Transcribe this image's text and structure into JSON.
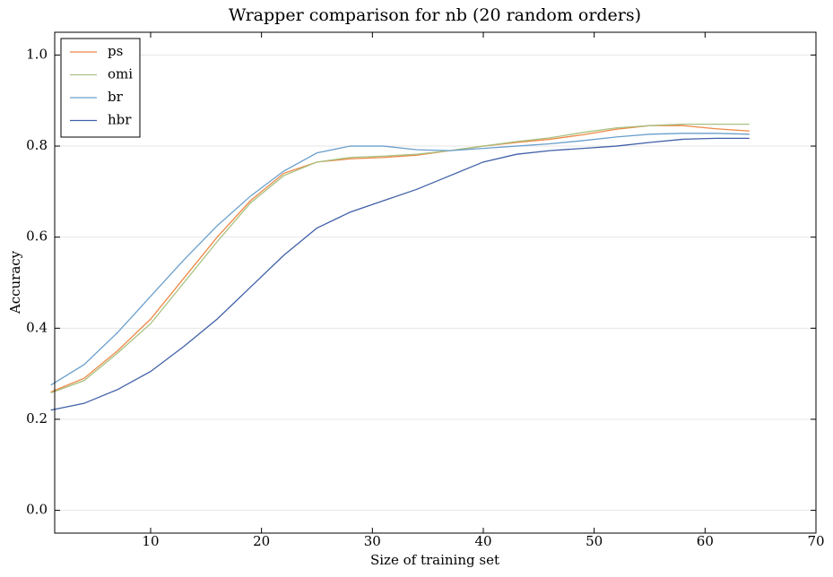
{
  "chart_data": {
    "type": "line",
    "title": "Wrapper comparison for nb (20 random orders)",
    "x_label": "Size of training set",
    "y_label": "Accuracy",
    "x": [
      1,
      4,
      7,
      10,
      13,
      16,
      19,
      22,
      25,
      28,
      31,
      34,
      37,
      40,
      43,
      46,
      49,
      52,
      55,
      58,
      61,
      64
    ],
    "series": [
      {
        "name": "ps",
        "color": "#ee8844",
        "values": [
          0.26,
          0.29,
          0.35,
          0.42,
          0.51,
          0.6,
          0.68,
          0.74,
          0.765,
          0.772,
          0.775,
          0.78,
          0.79,
          0.8,
          0.808,
          0.815,
          0.825,
          0.837,
          0.845,
          0.845,
          0.838,
          0.833
        ]
      },
      {
        "name": "omi",
        "color": "#a8c080",
        "values": [
          0.258,
          0.285,
          0.345,
          0.41,
          0.5,
          0.59,
          0.675,
          0.735,
          0.765,
          0.775,
          0.778,
          0.782,
          0.79,
          0.8,
          0.81,
          0.818,
          0.83,
          0.84,
          0.845,
          0.848,
          0.848,
          0.848
        ]
      },
      {
        "name": "br",
        "color": "#6a9fcc",
        "values": [
          0.275,
          0.32,
          0.39,
          0.47,
          0.55,
          0.625,
          0.69,
          0.745,
          0.785,
          0.8,
          0.8,
          0.792,
          0.79,
          0.795,
          0.8,
          0.805,
          0.812,
          0.82,
          0.826,
          0.828,
          0.828,
          0.826
        ]
      },
      {
        "name": "hbr",
        "color": "#4060a8",
        "values": [
          0.22,
          0.235,
          0.265,
          0.305,
          0.36,
          0.42,
          0.49,
          0.56,
          0.62,
          0.655,
          0.68,
          0.705,
          0.735,
          0.765,
          0.782,
          0.79,
          0.795,
          0.8,
          0.808,
          0.815,
          0.817,
          0.817
        ]
      }
    ],
    "xlim": [
      1.35,
      70
    ],
    "xticks": [
      10,
      20,
      30,
      40,
      50,
      60,
      70
    ],
    "ylim": [
      -0.05,
      1.05
    ],
    "yticks": [
      {
        "value": 0,
        "label": "0.0"
      },
      0.2,
      0.4,
      0.6,
      0.8,
      {
        "value": 1,
        "label": "1.0"
      }
    ],
    "grid": true,
    "legend": "upper-left"
  }
}
